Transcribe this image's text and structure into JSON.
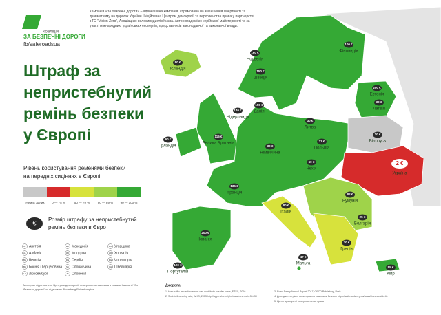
{
  "header": {
    "logo_small": "Коаліція",
    "logo_name": "ЗА БЕЗПЕЧНІ ДОРОГИ",
    "facebook": "fb/saferoadsua",
    "description": "Кампанія «За безпечні дороги» – адвокаційна кампанія, спрямована на зменшення смертності та травматизму на дорогах України. Ініційована Центром демократії та верховенства права у партнерстві з ГО \"Vision Zero\", Асоціацією велосипедистів Києва. Автономадемією керійської майстерності та за участі міжнародних, українських експертів, представників законодавчої та виконавчої влади."
  },
  "title": [
    "Штраф за",
    "непристебнутий",
    "ремінь безпеки",
    "у Європі"
  ],
  "legend": {
    "title": [
      "Рівень користування ременями безпеки",
      "на передніх сидіннях в Європі"
    ],
    "items": [
      {
        "label": "Немає даних",
        "color": "#c8c8c8"
      },
      {
        "label": "0 — 75 %",
        "color": "#d62b2b"
      },
      {
        "label": "50 — 79 %",
        "color": "#d7e23c"
      },
      {
        "label": "80 — 89 %",
        "color": "#9fd34a"
      },
      {
        "label": "90 — 100 %",
        "color": "#35a935"
      }
    ],
    "fine_symbol": "€",
    "fine_text": [
      "Розмір штрафу за непристебнутий",
      "ремінь безпеки в Євро"
    ]
  },
  "abbreviations": [
    [
      "AT",
      "Австрія"
    ],
    [
      "AL",
      "Албанія"
    ],
    [
      "BE",
      "Бельгія"
    ],
    [
      "BA",
      "Боснія і Герцеговина"
    ],
    [
      "LU",
      "Люксембург"
    ],
    [
      "MK",
      "Македонія"
    ],
    [
      "MD",
      "Молдова"
    ],
    [
      "RS",
      "Сербія"
    ],
    [
      "SK",
      "Словаччина"
    ],
    [
      "SI",
      "Словенія"
    ],
    [
      "HU",
      "Угорщина"
    ],
    [
      "HR",
      "Хорватія"
    ],
    [
      "ME",
      "Чорногорія"
    ],
    [
      "CH",
      "Швейцарія"
    ]
  ],
  "countries": [
    {
      "name": "Ісландія",
      "fine": "80 €"
    },
    {
      "name": "Норвегія",
      "fine": "160 €"
    },
    {
      "name": "Швеція",
      "fine": "150 €"
    },
    {
      "name": "Фінляндія",
      "fine": "100 €"
    },
    {
      "name": "Естонія",
      "fine": "200 €"
    },
    {
      "name": "Латвія",
      "fine": "30 €"
    },
    {
      "name": "Литва",
      "fine": "30 €"
    },
    {
      "name": "Данія",
      "fine": "155 €"
    },
    {
      "name": "Ірландія",
      "fine": "60 €"
    },
    {
      "name": "Велика Британія",
      "fine": "115 €"
    },
    {
      "name": "Нідерланди",
      "fine": "140 €"
    },
    {
      "name": "Німеччина",
      "fine": "30 €"
    },
    {
      "name": "Польща",
      "fine": "23 €"
    },
    {
      "name": "Білорусь",
      "fine": "10 €"
    },
    {
      "name": "Україна",
      "fine": "2 €"
    },
    {
      "name": "Франція",
      "fine": "135 €"
    },
    {
      "name": "Чехія",
      "fine": "60 €"
    },
    {
      "name": "Румунія",
      "fine": "82 €"
    },
    {
      "name": "Італія",
      "fine": "80 €"
    },
    {
      "name": "Іспанія",
      "fine": "200 €"
    },
    {
      "name": "Португалія",
      "fine": "120 €"
    },
    {
      "name": "Болгарія",
      "fine": "25 €"
    },
    {
      "name": "Греція",
      "fine": "30 €"
    },
    {
      "name": "Мальта",
      "fine": "47 €"
    },
    {
      "name": "Кіпр",
      "fine": "85 €"
    }
  ],
  "footnotes": {
    "title": "Джерела:",
    "items": [
      "1. How traffic law enforcement can contribute to safer roads, ETSC, 2016",
      "2. Seat-belt wearing rate, WHO, 2013 http://apps.who.int/gho/data/view.main.51430",
      "3. Road Safety Annual Report 2017, OECD Publishing, Paris",
      "4. Дослідження рівня користування ременями безпеки https://saferoads.org.ua/news/fines-seat-belts",
      "5. Центр демократії та верховенства права"
    ],
    "note": "Матеріал підготовлено Центром демократії та верховенства права в рамках Кампанії \"За безпечні дороги\" за підтримки Bloomberg Philanthropies"
  }
}
